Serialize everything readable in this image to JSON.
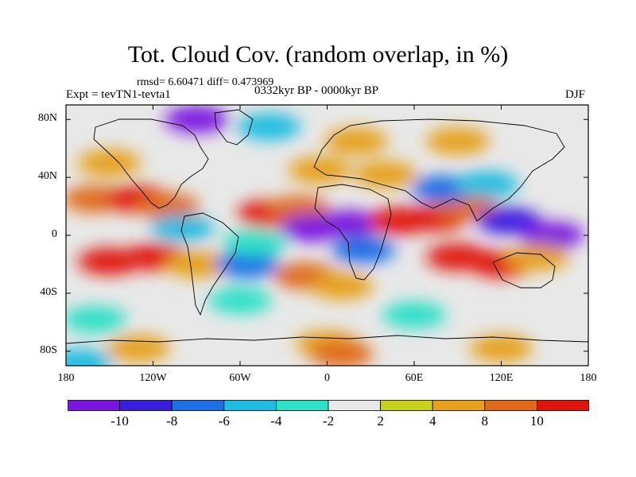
{
  "title": "Tot. Cloud Cov. (random overlap, in %)",
  "stats": "rmsd= 6.60471 diff= 0.473969",
  "expt": "Expt = tevTN1-tevta1",
  "period": "0332kyr BP - 0000kyr BP",
  "season": "DJF",
  "lat_labels": [
    "80N",
    "40N",
    "0",
    "40S",
    "80S"
  ],
  "lat_values": [
    80,
    40,
    0,
    -40,
    -80
  ],
  "lon_labels": [
    "180",
    "120W",
    "60W",
    "0",
    "60E",
    "120E",
    "180"
  ],
  "lon_values": [
    -180,
    -120,
    -60,
    0,
    60,
    120,
    180
  ],
  "lat_range": [
    -90,
    90
  ],
  "lon_range": [
    -180,
    180
  ],
  "colorbar": {
    "labels": [
      "-10",
      "-8",
      "-6",
      "-4",
      "-2",
      "2",
      "4",
      "8",
      "10"
    ],
    "levels": [
      -10,
      -8,
      -6,
      -4,
      -2,
      2,
      4,
      8,
      10
    ],
    "colors": [
      "#7a14e0",
      "#3a1ee0",
      "#1e6ee6",
      "#1ebce0",
      "#2ee0c8",
      "#e8e8e8",
      "#c8d21e",
      "#e6a01e",
      "#e06a1a",
      "#e0140f"
    ]
  },
  "fields": [
    {
      "lon": -160,
      "lat": 25,
      "value": 9
    },
    {
      "lon": -130,
      "lat": 25,
      "value": 10
    },
    {
      "lon": -110,
      "lat": 20,
      "value": 8
    },
    {
      "lon": -150,
      "lat": -18,
      "value": 11
    },
    {
      "lon": -118,
      "lat": -15,
      "value": 11
    },
    {
      "lon": -90,
      "lat": -20,
      "value": 6
    },
    {
      "lon": -100,
      "lat": 5,
      "value": -5
    },
    {
      "lon": -55,
      "lat": -20,
      "value": -8
    },
    {
      "lon": -40,
      "lat": 15,
      "value": 11
    },
    {
      "lon": -20,
      "lat": 18,
      "value": 8
    },
    {
      "lon": -10,
      "lat": 5,
      "value": -11
    },
    {
      "lon": 15,
      "lat": 8,
      "value": -11
    },
    {
      "lon": 25,
      "lat": -10,
      "value": -7
    },
    {
      "lon": -15,
      "lat": -28,
      "value": 9
    },
    {
      "lon": -50,
      "lat": -5,
      "value": -4
    },
    {
      "lon": 10,
      "lat": -35,
      "value": 5
    },
    {
      "lon": 50,
      "lat": 10,
      "value": 11
    },
    {
      "lon": 75,
      "lat": 12,
      "value": 10
    },
    {
      "lon": 95,
      "lat": 20,
      "value": 9
    },
    {
      "lon": 80,
      "lat": 32,
      "value": -7
    },
    {
      "lon": 110,
      "lat": 35,
      "value": -5
    },
    {
      "lon": 125,
      "lat": 10,
      "value": -9
    },
    {
      "lon": 155,
      "lat": 0,
      "value": -11
    },
    {
      "lon": 90,
      "lat": -15,
      "value": 10
    },
    {
      "lon": 120,
      "lat": -20,
      "value": 10
    },
    {
      "lon": 145,
      "lat": -15,
      "value": 7
    },
    {
      "lon": 40,
      "lat": 42,
      "value": 6
    },
    {
      "lon": -5,
      "lat": 45,
      "value": 4
    },
    {
      "lon": -150,
      "lat": 50,
      "value": 6
    },
    {
      "lon": -90,
      "lat": 80,
      "value": -11
    },
    {
      "lon": -40,
      "lat": 75,
      "value": -6
    },
    {
      "lon": 20,
      "lat": 65,
      "value": 4
    },
    {
      "lon": 90,
      "lat": 65,
      "value": 5
    },
    {
      "lon": -60,
      "lat": -45,
      "value": -3
    },
    {
      "lon": 60,
      "lat": -55,
      "value": -3
    },
    {
      "lon": -160,
      "lat": -58,
      "value": -3
    },
    {
      "lon": 0,
      "lat": -75,
      "value": 6
    },
    {
      "lon": -130,
      "lat": -78,
      "value": 5
    },
    {
      "lon": 120,
      "lat": -78,
      "value": 5
    },
    {
      "lon": -170,
      "lat": -88,
      "value": -6
    },
    {
      "lon": 10,
      "lat": -82,
      "value": 9
    }
  ]
}
